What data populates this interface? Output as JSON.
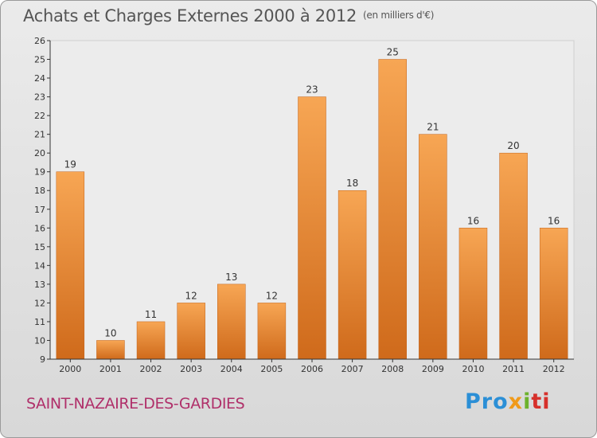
{
  "header": {
    "title": "Achats et Charges Externes 2000 à 2012",
    "unit": "(en milliers d'€)"
  },
  "footer": {
    "commune": "SAINT-NAZAIRE-DES-GARDIES",
    "logo": [
      "Pro",
      "x",
      "i",
      "ti"
    ]
  },
  "colors": {
    "bar_top": "#f7a654",
    "bar_bottom": "#cf6a1b",
    "commune": "#b0306a"
  },
  "chart_data": {
    "type": "bar",
    "title": "Achats et Charges Externes 2000 à 2012",
    "subtitle": "(en milliers d'€)",
    "xlabel": "",
    "ylabel": "",
    "categories": [
      "2000",
      "2001",
      "2002",
      "2003",
      "2004",
      "2005",
      "2006",
      "2007",
      "2008",
      "2009",
      "2010",
      "2011",
      "2012"
    ],
    "values": [
      19,
      10,
      11,
      12,
      13,
      12,
      23,
      18,
      25,
      21,
      16,
      20,
      16
    ],
    "ylim": [
      9,
      26
    ],
    "yticks": [
      9,
      10,
      11,
      12,
      13,
      14,
      15,
      16,
      17,
      18,
      19,
      20,
      21,
      22,
      23,
      24,
      25,
      26
    ],
    "grid": false,
    "data_labels": true
  }
}
